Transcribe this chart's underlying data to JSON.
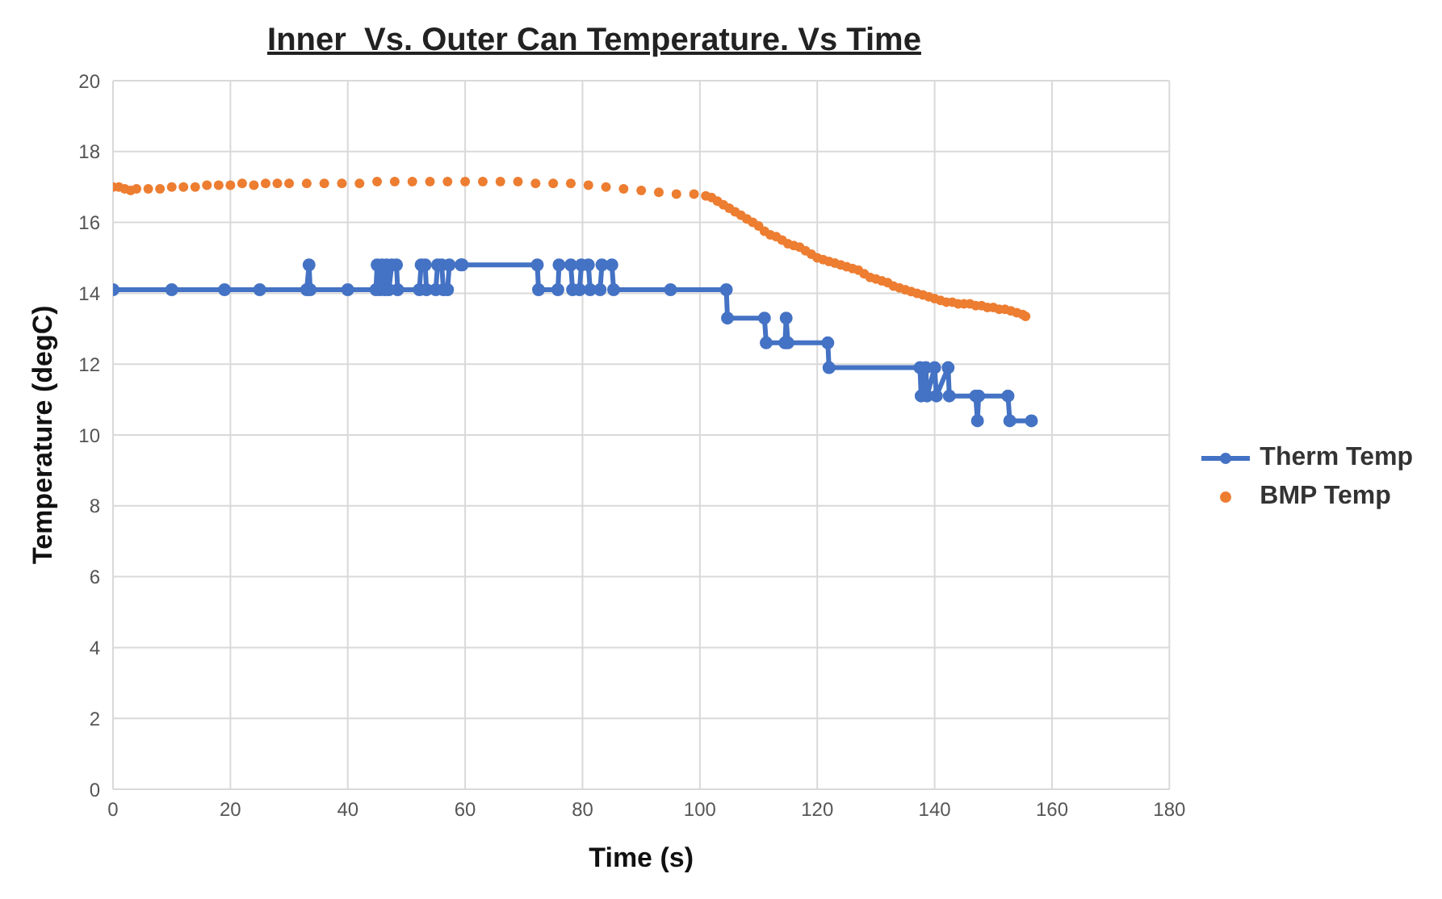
{
  "chart_data": {
    "type": "line",
    "title": "Inner  Vs. Outer Can Temperature. Vs Time",
    "xlabel": "Time (s)",
    "ylabel": "Temperature (degC)",
    "xlim": [
      0,
      180
    ],
    "xticks": [
      0,
      20,
      40,
      60,
      80,
      100,
      120,
      140,
      160,
      180
    ],
    "ylim": [
      0,
      20
    ],
    "yticks": [
      0,
      2,
      4,
      6,
      8,
      10,
      12,
      14,
      16,
      18,
      20
    ],
    "grid": true,
    "legend": "right",
    "series": [
      {
        "name": "Therm Temp",
        "marker": "circle",
        "color": "#4472c4",
        "x": [
          0,
          10,
          19,
          25,
          33,
          33.4,
          33.6,
          40,
          44.8,
          45,
          45.5,
          45.8,
          46.3,
          46.6,
          47,
          47.5,
          48.3,
          48.5,
          52.2,
          52.5,
          53.2,
          53.4,
          55,
          55.3,
          56,
          56.3,
          57,
          57.3,
          59.3,
          59.5,
          72.3,
          72.5,
          75.8,
          76,
          78,
          78.3,
          79.5,
          79.8,
          81,
          81.3,
          83,
          83.3,
          85,
          85.3,
          95,
          104.5,
          104.7,
          111,
          111.3,
          114.5,
          114.7,
          115,
          121.8,
          122,
          137.5,
          137.7,
          138.5,
          138.7,
          140,
          140.3,
          142.3,
          142.5,
          147,
          147.3,
          147.5,
          152.5,
          152.8,
          156.5
        ],
        "values": [
          14.1,
          14.1,
          14.1,
          14.1,
          14.1,
          14.8,
          14.1,
          14.1,
          14.1,
          14.8,
          14.1,
          14.8,
          14.1,
          14.8,
          14.1,
          14.8,
          14.8,
          14.1,
          14.1,
          14.8,
          14.8,
          14.1,
          14.1,
          14.8,
          14.8,
          14.1,
          14.1,
          14.8,
          14.8,
          14.8,
          14.8,
          14.1,
          14.1,
          14.8,
          14.8,
          14.1,
          14.1,
          14.8,
          14.8,
          14.1,
          14.1,
          14.8,
          14.8,
          14.1,
          14.1,
          14.1,
          13.3,
          13.3,
          12.6,
          12.6,
          13.3,
          12.6,
          12.6,
          11.9,
          11.9,
          11.1,
          11.9,
          11.1,
          11.9,
          11.1,
          11.9,
          11.1,
          11.1,
          10.4,
          11.1,
          11.1,
          10.4,
          10.4
        ]
      },
      {
        "name": "BMP Temp",
        "type": "scatter",
        "marker": "circle",
        "color": "#ed7d31",
        "x": [
          0,
          1,
          2,
          3,
          4,
          6,
          8,
          10,
          12,
          14,
          16,
          18,
          20,
          22,
          24,
          26,
          28,
          30,
          33,
          36,
          39,
          42,
          45,
          48,
          51,
          54,
          57,
          60,
          63,
          66,
          69,
          72,
          75,
          78,
          81,
          84,
          87,
          90,
          93,
          96,
          99,
          101,
          102,
          103,
          104,
          105,
          106,
          107,
          108,
          109,
          110,
          111,
          112,
          113,
          114,
          115,
          116,
          117,
          118,
          119,
          120,
          121,
          122,
          123,
          124,
          125,
          126,
          127,
          128,
          129,
          130,
          131,
          132,
          133,
          134,
          135,
          136,
          137,
          138,
          139,
          140,
          141,
          142,
          143,
          144,
          145,
          146,
          147,
          148,
          149,
          150,
          151,
          152,
          153,
          154,
          155,
          155.5
        ],
        "values": [
          17,
          17,
          16.95,
          16.9,
          16.95,
          16.95,
          16.95,
          17,
          17,
          17,
          17.05,
          17.05,
          17.05,
          17.1,
          17.05,
          17.1,
          17.1,
          17.1,
          17.1,
          17.1,
          17.1,
          17.1,
          17.15,
          17.15,
          17.15,
          17.15,
          17.15,
          17.15,
          17.15,
          17.15,
          17.15,
          17.1,
          17.1,
          17.1,
          17.05,
          17,
          16.95,
          16.9,
          16.85,
          16.8,
          16.8,
          16.75,
          16.7,
          16.6,
          16.5,
          16.4,
          16.3,
          16.2,
          16.1,
          16.0,
          15.9,
          15.75,
          15.65,
          15.6,
          15.5,
          15.4,
          15.35,
          15.3,
          15.2,
          15.1,
          15.0,
          14.95,
          14.9,
          14.85,
          14.8,
          14.75,
          14.7,
          14.65,
          14.55,
          14.45,
          14.4,
          14.35,
          14.3,
          14.2,
          14.15,
          14.1,
          14.05,
          14.0,
          13.95,
          13.9,
          13.85,
          13.8,
          13.75,
          13.75,
          13.7,
          13.7,
          13.7,
          13.65,
          13.65,
          13.6,
          13.6,
          13.55,
          13.55,
          13.5,
          13.45,
          13.4,
          13.35
        ]
      }
    ]
  }
}
